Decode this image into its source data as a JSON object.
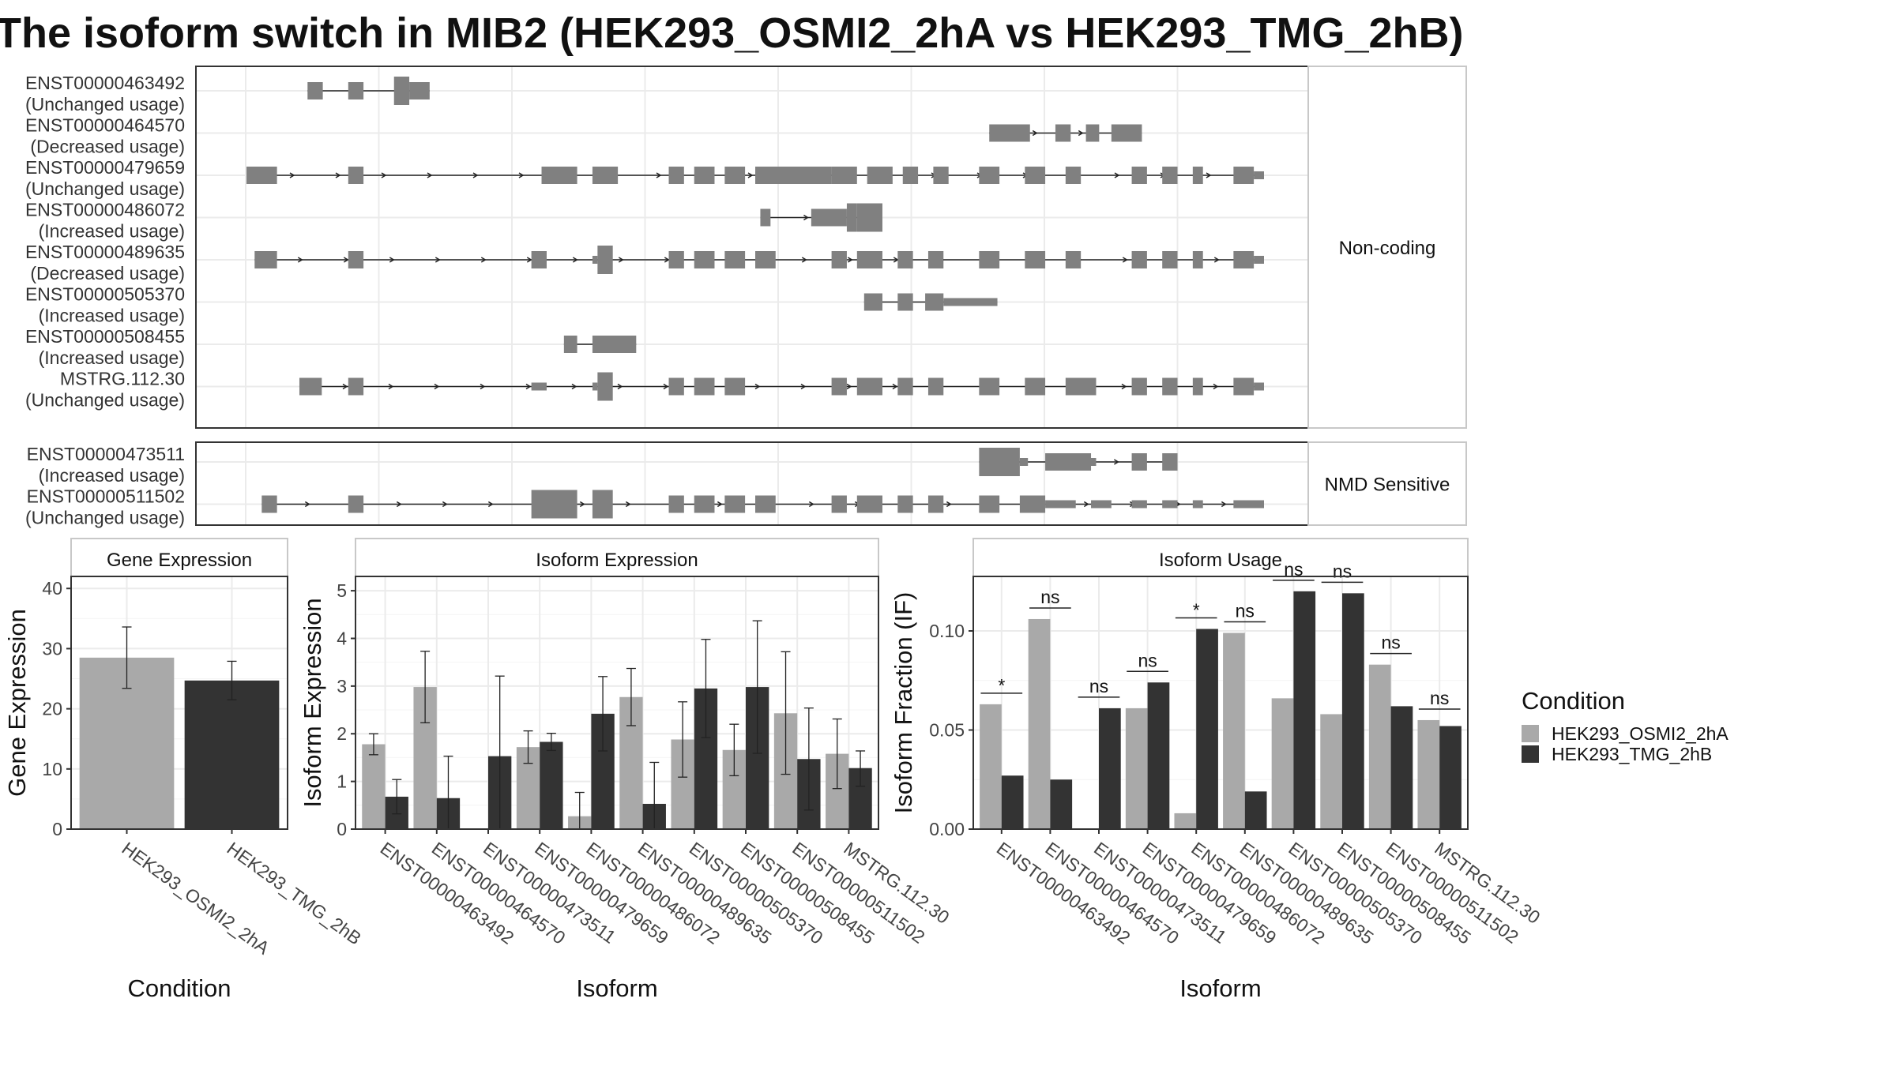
{
  "title": "The isoform switch in MIB2 (HEK293_OSMI2_2hA vs HEK293_TMG_2hB)",
  "colors": {
    "HEK293_OSMI2_2hA": "#a9a9a9",
    "HEK293_TMG_2hB": "#333333",
    "exon": "#808080"
  },
  "chart_data": [
    {
      "type": "diagram",
      "panel": "transcript-structure",
      "groups": [
        {
          "label": "Non-coding",
          "transcripts": [
            {
              "id": "ENST00000463492",
              "usage": "(Unchanged usage)",
              "start": 0.06,
              "end": 0.18,
              "exons": [
                [
                  0.06,
                  0.075,
                  "m"
                ],
                [
                  0.1,
                  0.115,
                  "m"
                ],
                [
                  0.145,
                  0.16,
                  "l"
                ],
                [
                  0.16,
                  0.18,
                  "m"
                ]
              ]
            },
            {
              "id": "ENST00000464570",
              "usage": "(Decreased usage)",
              "start": 0.73,
              "end": 0.88,
              "exons": [
                [
                  0.73,
                  0.77,
                  "m"
                ],
                [
                  0.795,
                  0.81,
                  "m"
                ],
                [
                  0.825,
                  0.838,
                  "m"
                ],
                [
                  0.85,
                  0.87,
                  "m"
                ],
                [
                  0.865,
                  0.88,
                  "m"
                ]
              ]
            },
            {
              "id": "ENST00000479659",
              "usage": "(Unchanged usage)",
              "start": 0.0,
              "end": 1.0,
              "exons": [
                [
                  0.0,
                  0.03,
                  "m"
                ],
                [
                  0.1,
                  0.115,
                  "m"
                ],
                [
                  0.29,
                  0.325,
                  "m"
                ],
                [
                  0.34,
                  0.365,
                  "m"
                ],
                [
                  0.415,
                  0.43,
                  "m"
                ],
                [
                  0.44,
                  0.46,
                  "m"
                ],
                [
                  0.47,
                  0.49,
                  "m"
                ],
                [
                  0.5,
                  0.575,
                  "m"
                ],
                [
                  0.575,
                  0.6,
                  "m"
                ],
                [
                  0.61,
                  0.635,
                  "m"
                ],
                [
                  0.645,
                  0.66,
                  "m"
                ],
                [
                  0.675,
                  0.69,
                  "m"
                ],
                [
                  0.72,
                  0.74,
                  "m"
                ],
                [
                  0.765,
                  0.785,
                  "m"
                ],
                [
                  0.805,
                  0.82,
                  "m"
                ],
                [
                  0.87,
                  0.885,
                  "m"
                ],
                [
                  0.9,
                  0.915,
                  "m"
                ],
                [
                  0.93,
                  0.94,
                  "m"
                ],
                [
                  0.97,
                  0.99,
                  "m"
                ],
                [
                  0.99,
                  1.0,
                  "s"
                ]
              ]
            },
            {
              "id": "ENST00000486072",
              "usage": "(Increased usage)",
              "start": 0.505,
              "end": 0.625,
              "exons": [
                [
                  0.505,
                  0.515,
                  "m"
                ],
                [
                  0.555,
                  0.59,
                  "m"
                ],
                [
                  0.59,
                  0.6,
                  "l"
                ],
                [
                  0.6,
                  0.625,
                  "l"
                ]
              ]
            },
            {
              "id": "ENST00000489635",
              "usage": "(Decreased usage)",
              "start": 0.008,
              "end": 1.0,
              "exons": [
                [
                  0.008,
                  0.03,
                  "m"
                ],
                [
                  0.1,
                  0.115,
                  "m"
                ],
                [
                  0.28,
                  0.295,
                  "m"
                ],
                [
                  0.34,
                  0.345,
                  "s"
                ],
                [
                  0.345,
                  0.36,
                  "l"
                ],
                [
                  0.415,
                  0.43,
                  "m"
                ],
                [
                  0.44,
                  0.46,
                  "m"
                ],
                [
                  0.47,
                  0.49,
                  "m"
                ],
                [
                  0.5,
                  0.52,
                  "m"
                ],
                [
                  0.575,
                  0.59,
                  "m"
                ],
                [
                  0.6,
                  0.625,
                  "m"
                ],
                [
                  0.64,
                  0.655,
                  "m"
                ],
                [
                  0.67,
                  0.685,
                  "m"
                ],
                [
                  0.72,
                  0.74,
                  "m"
                ],
                [
                  0.765,
                  0.785,
                  "m"
                ],
                [
                  0.805,
                  0.82,
                  "m"
                ],
                [
                  0.87,
                  0.885,
                  "m"
                ],
                [
                  0.9,
                  0.915,
                  "m"
                ],
                [
                  0.93,
                  0.94,
                  "m"
                ],
                [
                  0.97,
                  0.99,
                  "m"
                ],
                [
                  0.99,
                  1.0,
                  "s"
                ]
              ]
            },
            {
              "id": "ENST00000505370",
              "usage": "(Increased usage)",
              "start": 0.607,
              "end": 0.738,
              "exons": [
                [
                  0.607,
                  0.625,
                  "m"
                ],
                [
                  0.64,
                  0.655,
                  "m"
                ],
                [
                  0.667,
                  0.685,
                  "m"
                ],
                [
                  0.685,
                  0.738,
                  "s"
                ]
              ]
            },
            {
              "id": "ENST00000508455",
              "usage": "(Increased usage)",
              "start": 0.312,
              "end": 0.383,
              "exons": [
                [
                  0.312,
                  0.325,
                  "m"
                ],
                [
                  0.34,
                  0.383,
                  "m"
                ]
              ]
            },
            {
              "id": "MSTRG.112.30",
              "usage": "(Unchanged usage)",
              "start": 0.052,
              "end": 1.0,
              "exons": [
                [
                  0.052,
                  0.074,
                  "m"
                ],
                [
                  0.1,
                  0.115,
                  "m"
                ],
                [
                  0.28,
                  0.295,
                  "s"
                ],
                [
                  0.34,
                  0.345,
                  "s"
                ],
                [
                  0.345,
                  0.36,
                  "l"
                ],
                [
                  0.415,
                  0.43,
                  "m"
                ],
                [
                  0.44,
                  0.46,
                  "m"
                ],
                [
                  0.47,
                  0.49,
                  "m"
                ],
                [
                  0.575,
                  0.59,
                  "m"
                ],
                [
                  0.6,
                  0.625,
                  "m"
                ],
                [
                  0.64,
                  0.655,
                  "m"
                ],
                [
                  0.67,
                  0.685,
                  "m"
                ],
                [
                  0.72,
                  0.74,
                  "m"
                ],
                [
                  0.765,
                  0.785,
                  "m"
                ],
                [
                  0.805,
                  0.835,
                  "m"
                ],
                [
                  0.87,
                  0.885,
                  "m"
                ],
                [
                  0.9,
                  0.915,
                  "m"
                ],
                [
                  0.93,
                  0.94,
                  "m"
                ],
                [
                  0.97,
                  0.99,
                  "m"
                ],
                [
                  0.99,
                  1.0,
                  "s"
                ]
              ]
            }
          ]
        },
        {
          "label": "NMD Sensitive",
          "transcripts": [
            {
              "id": "ENST00000473511",
              "usage": "(Increased usage)",
              "start": 0.72,
              "end": 0.915,
              "exons": [
                [
                  0.72,
                  0.76,
                  "l"
                ],
                [
                  0.76,
                  0.768,
                  "s"
                ],
                [
                  0.785,
                  0.83,
                  "m"
                ],
                [
                  0.815,
                  0.835,
                  "s"
                ],
                [
                  0.87,
                  0.885,
                  "m"
                ],
                [
                  0.9,
                  0.915,
                  "m"
                ]
              ]
            },
            {
              "id": "ENST00000511502",
              "usage": "(Unchanged usage)",
              "start": 0.015,
              "end": 1.0,
              "exons": [
                [
                  0.015,
                  0.03,
                  "m"
                ],
                [
                  0.1,
                  0.115,
                  "m"
                ],
                [
                  0.28,
                  0.325,
                  "l"
                ],
                [
                  0.34,
                  0.36,
                  "l"
                ],
                [
                  0.415,
                  0.43,
                  "m"
                ],
                [
                  0.44,
                  0.46,
                  "m"
                ],
                [
                  0.47,
                  0.49,
                  "m"
                ],
                [
                  0.5,
                  0.52,
                  "m"
                ],
                [
                  0.575,
                  0.59,
                  "m"
                ],
                [
                  0.6,
                  0.625,
                  "m"
                ],
                [
                  0.64,
                  0.655,
                  "m"
                ],
                [
                  0.67,
                  0.685,
                  "m"
                ],
                [
                  0.72,
                  0.74,
                  "m"
                ],
                [
                  0.76,
                  0.785,
                  "m"
                ],
                [
                  0.785,
                  0.815,
                  "s"
                ],
                [
                  0.83,
                  0.85,
                  "s"
                ],
                [
                  0.87,
                  0.885,
                  "s"
                ],
                [
                  0.9,
                  0.915,
                  "s"
                ],
                [
                  0.93,
                  0.94,
                  "s"
                ],
                [
                  0.97,
                  1.0,
                  "s"
                ]
              ]
            }
          ]
        }
      ]
    },
    {
      "type": "bar",
      "panel": "gene-expression",
      "title": "Gene Expression",
      "xlabel": "Condition",
      "ylabel": "Gene Expression",
      "ylim": [
        0,
        42
      ],
      "yticks": [
        0,
        10,
        20,
        30,
        40
      ],
      "categories": [
        "HEK293_OSMI2_2hA",
        "HEK293_TMG_2hB"
      ],
      "values": [
        28.5,
        24.7
      ],
      "errors": [
        [
          23.4,
          33.6
        ],
        [
          21.5,
          27.9
        ]
      ]
    },
    {
      "type": "bar",
      "panel": "isoform-expression",
      "title": "Isoform Expression",
      "xlabel": "Isoform",
      "ylabel": "Isoform Expression",
      "ylim": [
        0,
        5.3
      ],
      "yticks": [
        0,
        1,
        2,
        3,
        4,
        5
      ],
      "categories": [
        "ENST00000463492",
        "ENST00000464570",
        "ENST00000473511",
        "ENST00000479659",
        "ENST00000486072",
        "ENST00000489635",
        "ENST00000505370",
        "ENST00000508455",
        "ENST00000511502",
        "MSTRG.112.30"
      ],
      "series": [
        {
          "name": "HEK293_OSMI2_2hA",
          "values": [
            1.78,
            2.98,
            0.0,
            1.72,
            0.27,
            2.77,
            1.88,
            1.66,
            2.43,
            1.58
          ],
          "errors": [
            [
              1.56,
              2.0
            ],
            [
              2.23,
              3.73
            ],
            [
              0,
              0
            ],
            [
              1.38,
              2.06
            ],
            [
              0.0,
              0.77
            ],
            [
              2.17,
              3.37
            ],
            [
              1.09,
              2.67
            ],
            [
              1.12,
              2.2
            ],
            [
              1.15,
              3.72
            ],
            [
              0.85,
              2.31
            ]
          ]
        },
        {
          "name": "HEK293_TMG_2hB",
          "values": [
            0.68,
            0.65,
            1.53,
            1.83,
            2.42,
            0.53,
            2.95,
            2.98,
            1.47,
            1.28
          ],
          "errors": [
            [
              0.32,
              1.04
            ],
            [
              0.0,
              1.53
            ],
            [
              0.0,
              3.21
            ],
            [
              1.65,
              2.01
            ],
            [
              1.64,
              3.2
            ],
            [
              0.0,
              1.4
            ],
            [
              1.92,
              3.98
            ],
            [
              1.59,
              4.37
            ],
            [
              0.4,
              2.54
            ],
            [
              0.9,
              1.64
            ]
          ]
        }
      ]
    },
    {
      "type": "bar",
      "panel": "isoform-usage",
      "title": "Isoform Usage",
      "xlabel": "Isoform",
      "ylabel": "Isoform Fraction (IF)",
      "ylim": [
        0,
        0.1275
      ],
      "yticks": [
        "0.00",
        "0.05",
        "0.10"
      ],
      "categories": [
        "ENST00000463492",
        "ENST00000464570",
        "ENST00000473511",
        "ENST00000479659",
        "ENST00000486072",
        "ENST00000489635",
        "ENST00000505370",
        "ENST00000508455",
        "ENST00000511502",
        "MSTRG.112.30"
      ],
      "series": [
        {
          "name": "HEK293_OSMI2_2hA",
          "values": [
            0.063,
            0.106,
            0.0,
            0.061,
            0.008,
            0.099,
            0.066,
            0.058,
            0.083,
            0.055
          ]
        },
        {
          "name": "HEK293_TMG_2hB",
          "values": [
            0.027,
            0.025,
            0.061,
            0.074,
            0.101,
            0.019,
            0.12,
            0.119,
            0.062,
            0.052
          ]
        }
      ],
      "significance": [
        "*",
        "ns",
        "ns",
        "ns",
        "*",
        "ns",
        "ns",
        "ns",
        "ns",
        "ns"
      ]
    }
  ],
  "legend": {
    "title": "Condition",
    "items": [
      {
        "label": "HEK293_OSMI2_2hA",
        "color": "#a9a9a9"
      },
      {
        "label": "HEK293_TMG_2hB",
        "color": "#333333"
      }
    ]
  }
}
